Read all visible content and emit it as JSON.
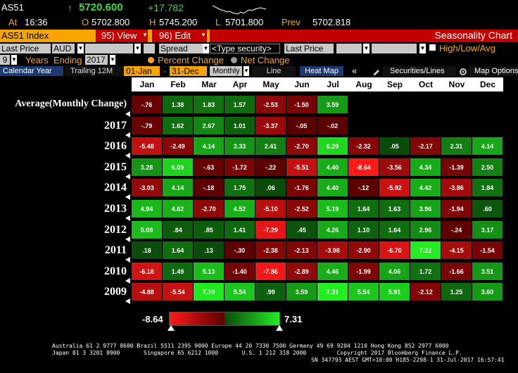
{
  "quote": {
    "ticker": "AS51",
    "last": "5720.600",
    "change": "+17.782",
    "at_label": "At",
    "time": "16:36",
    "open_label": "O",
    "open": "5702.800",
    "high_label": "H",
    "high": "5745.200",
    "low_label": "L",
    "low": "5701.800",
    "prev_label": "Prev",
    "prev": "5702.818",
    "up_arrow": "↑"
  },
  "titlebar": {
    "security": "AS51 Index",
    "view_label": "95) View",
    "edit_label": "96) Edit",
    "title": "Seasonality Chart"
  },
  "controls": {
    "metric": "Last Price",
    "currency": "AUD",
    "compare_type": "Spread",
    "security_placeholder": "<Type security>",
    "metric2": "Last Price",
    "high_low_avg": "High/Low/Avg",
    "years_count": "9",
    "years_label": "Years",
    "ending_label": "Ending",
    "ending_year": "2017",
    "percent_change": "Percent Change",
    "net_change": "Net Change",
    "calendar_year": "Calendar Year",
    "trailing": "Trailing 12M",
    "from_date": "01-Jan",
    "dash": "-",
    "to_date": "31-Dec",
    "period": "Monthly",
    "line": "Line",
    "heat_map": "Heat Map",
    "collapse": "«",
    "securities_lines": "Securities/Lines",
    "map_options": "Map Options"
  },
  "heatmap": {
    "months": [
      "Jan",
      "Feb",
      "Mar",
      "Apr",
      "May",
      "Jun",
      "Jul",
      "Aug",
      "Sep",
      "Oct",
      "Nov",
      "Dec"
    ],
    "rows": [
      {
        "label": "Average(Monthly Change)",
        "values": [
          "-.76",
          "1.38",
          "1.83",
          "1.57",
          "-2.53",
          "-1.50",
          "3.59",
          null,
          null,
          null,
          null,
          null
        ]
      },
      {
        "label": "2017",
        "values": [
          "-.79",
          "1.62",
          "2.67",
          "1.01",
          "-3.37",
          "-.05",
          "-.02",
          null,
          null,
          null,
          null,
          null
        ]
      },
      {
        "label": "2016",
        "values": [
          "-5.48",
          "-2.49",
          "4.14",
          "3.33",
          "2.41",
          "-2.70",
          "6.29",
          "-2.32",
          ".05",
          "-2.17",
          "2.31",
          "4.14"
        ]
      },
      {
        "label": "2015",
        "values": [
          "3.28",
          "6.09",
          "-.63",
          "-1.72",
          "-.22",
          "-5.51",
          "4.40",
          "-8.64",
          "-3.56",
          "4.34",
          "-1.39",
          "2.50"
        ]
      },
      {
        "label": "2014",
        "values": [
          "-3.03",
          "4.14",
          "-.18",
          "1.75",
          ".06",
          "-1.76",
          "4.40",
          "-.12",
          "-5.92",
          "4.42",
          "-3.86",
          "1.84"
        ]
      },
      {
        "label": "2013",
        "values": [
          "4.94",
          "4.62",
          "-2.70",
          "4.52",
          "-5.10",
          "-2.52",
          "5.19",
          "1.64",
          "1.63",
          "3.96",
          "-1.94",
          ".60"
        ]
      },
      {
        "label": "2012",
        "values": [
          "5.08",
          ".84",
          ".85",
          "1.41",
          "-7.29",
          ".45",
          "4.26",
          "1.10",
          "1.64",
          "2.96",
          "-.24",
          "3.17"
        ]
      },
      {
        "label": "2011",
        "values": [
          ".18",
          "1.64",
          ".13",
          "-.30",
          "-2.38",
          "-2.13",
          "-3.98",
          "-2.90",
          "-6.70",
          "7.22",
          "-4.15",
          "-1.54"
        ]
      },
      {
        "label": "2010",
        "values": [
          "-6.18",
          "1.49",
          "5.13",
          "-1.40",
          "-7.86",
          "-2.89",
          "4.46",
          "-1.99",
          "4.06",
          "1.72",
          "-1.66",
          "3.51"
        ]
      },
      {
        "label": "2009",
        "values": [
          "-4.88",
          "-5.54",
          "7.10",
          "5.54",
          ".99",
          "3.59",
          "7.31",
          "5.54",
          "5.91",
          "-2.12",
          "1.25",
          "3.60"
        ]
      }
    ],
    "scale_min": "-8.64",
    "scale_max": "7.31",
    "colors": {
      "neg_max": "#ff1a1a",
      "neg_min": "#5a0000",
      "pos_min": "#0a4a0a",
      "pos_max": "#22ee22"
    }
  },
  "footer": {
    "line1": "Australia 61 2 9777 8600 Brazil 5511 2395 9000 Europe 44 20 7330 7500 Germany 49 69 9204 1210 Hong Kong 852 2977 6000",
    "line2": "Japan 81 3 3201 8900       Singapore 65 6212 1000       U.S. 1 212 318 2000         Copyright 2017 Bloomberg Finance L.P.",
    "line3": "SN 347793 AEST GMT+10:00 H185-2298-1 31-Jul-2017 16:57:41"
  }
}
